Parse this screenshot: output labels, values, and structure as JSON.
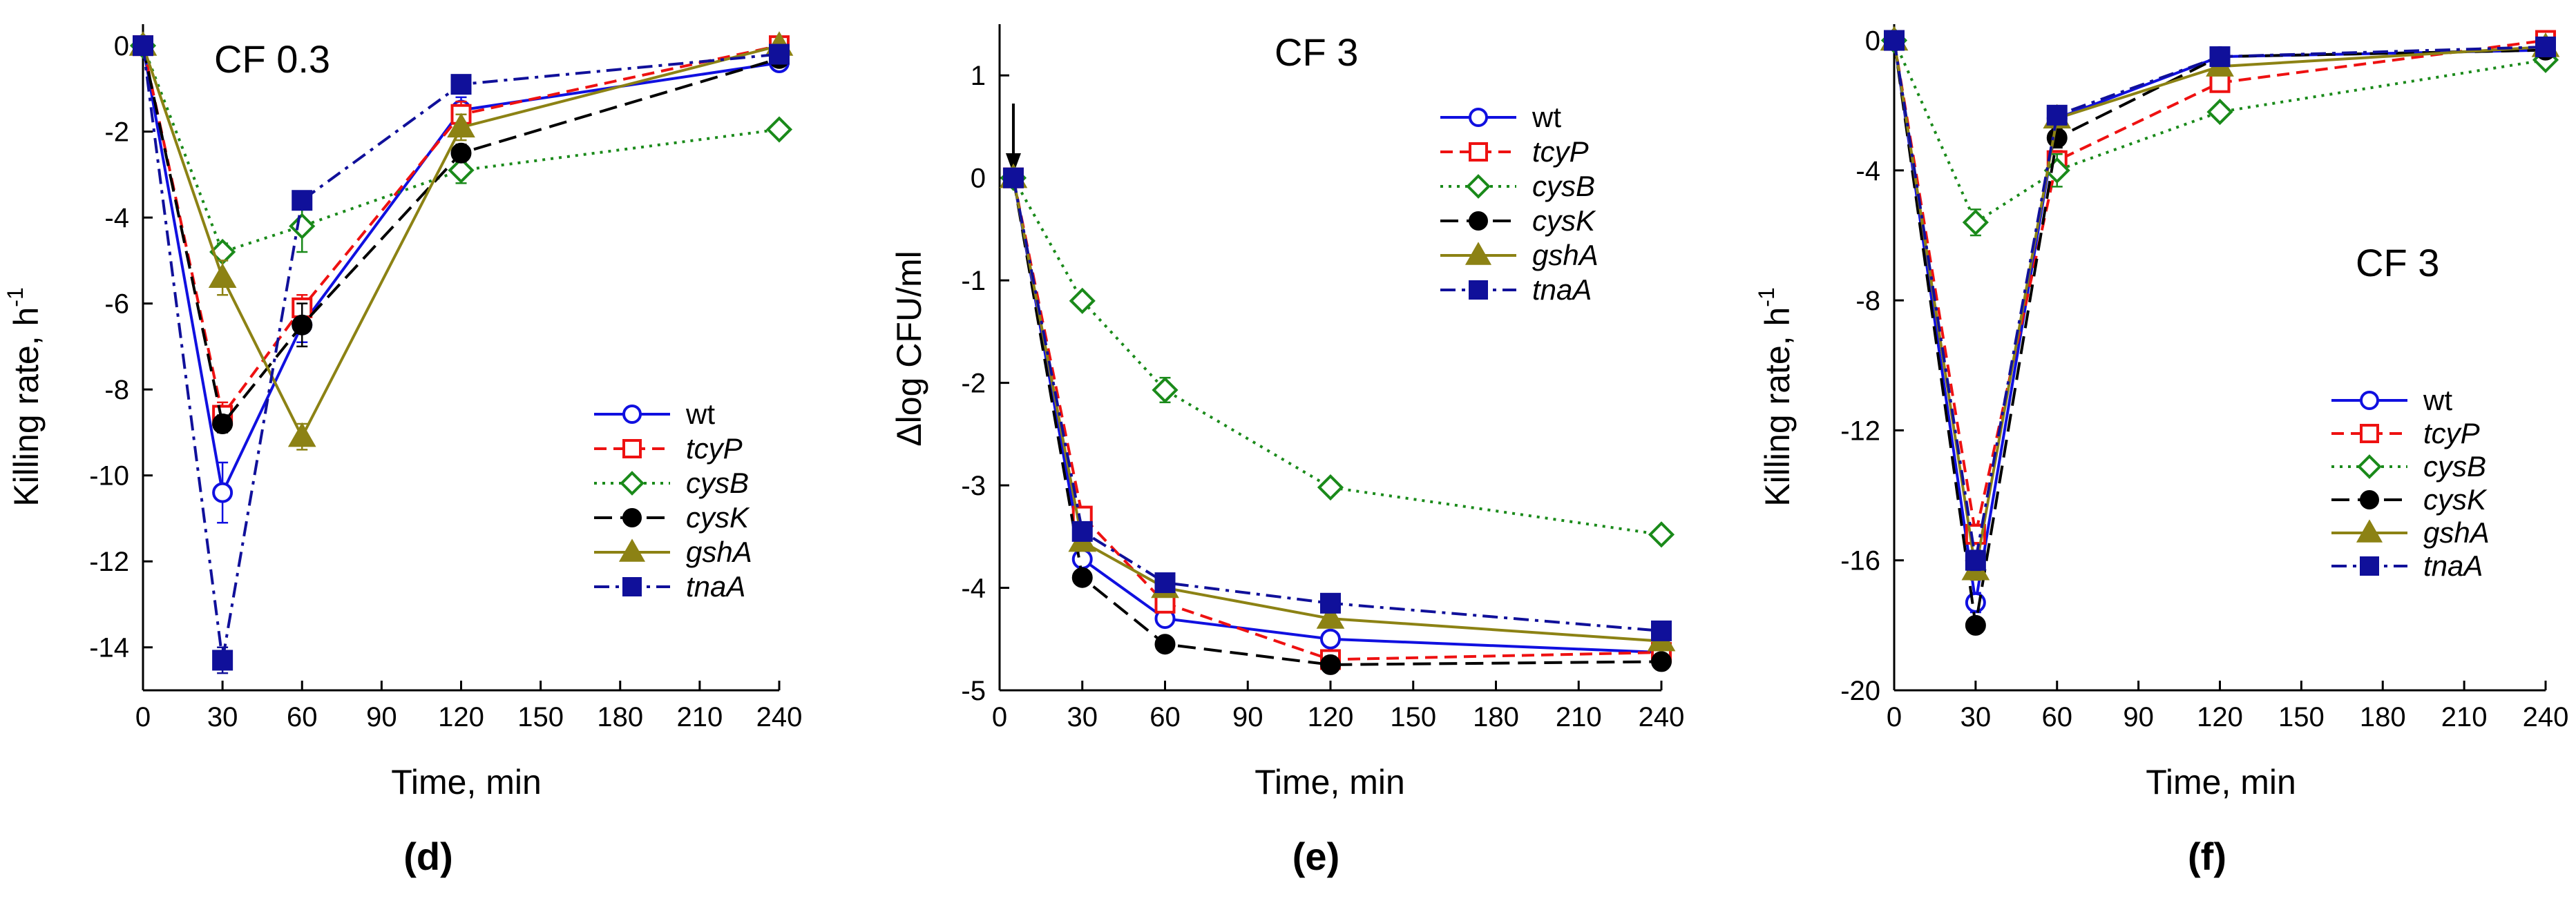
{
  "figure": {
    "panel_labels": [
      {
        "open": "(",
        "letter": "d",
        "close": ")"
      },
      {
        "open": "(",
        "letter": "e",
        "close": ")"
      },
      {
        "open": "(",
        "letter": "f",
        "close": ")"
      }
    ]
  },
  "styles": {
    "wt": {
      "color": "#1010e0",
      "dash": "solid",
      "marker": "circle",
      "filled": false
    },
    "tcyP": {
      "color": "#ee1111",
      "dash": "dashed",
      "marker": "square",
      "filled": false
    },
    "cysB": {
      "color": "#1a8a1a",
      "dash": "dotted",
      "marker": "diamond",
      "filled": false
    },
    "cysK": {
      "color": "#000000",
      "dash": "longdash",
      "marker": "circle",
      "filled": true
    },
    "gshA": {
      "color": "#8c8214",
      "dash": "solid",
      "marker": "triangle",
      "filled": true
    },
    "tnaA": {
      "color": "#10109a",
      "dash": "dashdot",
      "marker": "square",
      "filled": true
    }
  },
  "chart_data": [
    {
      "type": "line",
      "title": "CF 0.3",
      "xlabel": "Time, min",
      "ylabel_main": "Killing rate, h",
      "ylabel_sup": "-1",
      "xlim": [
        0,
        240
      ],
      "ylim": [
        -15,
        0.5
      ],
      "xticks": [
        0,
        30,
        60,
        90,
        120,
        150,
        180,
        210,
        240
      ],
      "xtick_labels": [
        "0",
        "30",
        "60",
        "90",
        "120",
        "150",
        "180",
        "210",
        "240"
      ],
      "yticks": [
        0,
        -2,
        -4,
        -6,
        -8,
        -10,
        -12,
        -14
      ],
      "ytick_labels": [
        "0",
        "-2",
        "-4",
        "-6",
        "-8",
        "-10",
        "-12",
        "-14"
      ],
      "legend": "lower-right",
      "arrow_at_x": null,
      "x": [
        0,
        30,
        60,
        120,
        240
      ],
      "series": [
        {
          "name": "wt",
          "values": [
            0,
            -10.4,
            -6.5,
            -1.5,
            -0.4
          ],
          "err": [
            0,
            0.7,
            0.4,
            0.3,
            0.1
          ]
        },
        {
          "name": "tcyP",
          "values": [
            0,
            -8.6,
            -6.1,
            -1.6,
            0
          ],
          "err": [
            0,
            0.3,
            0.3,
            0.3,
            0.1
          ]
        },
        {
          "name": "cysB",
          "values": [
            0,
            -4.8,
            -4.2,
            -2.9,
            -1.95
          ],
          "err": [
            0,
            0.2,
            0.6,
            0.3,
            0.1
          ]
        },
        {
          "name": "cysK",
          "values": [
            0,
            -8.8,
            -6.5,
            -2.5,
            -0.3
          ],
          "err": [
            0,
            0.2,
            0.5,
            0.2,
            0.1
          ]
        },
        {
          "name": "gshA",
          "values": [
            0,
            -5.4,
            -9.1,
            -1.9,
            0
          ],
          "err": [
            0,
            0.4,
            0.3,
            0.3,
            0.1
          ]
        },
        {
          "name": "tnaA",
          "values": [
            0,
            -14.3,
            -3.6,
            -0.9,
            -0.2
          ],
          "err": [
            0,
            0.3,
            0.1,
            0.1,
            0.1
          ]
        }
      ]
    },
    {
      "type": "line",
      "title": "CF 3",
      "xlabel": "Time, min",
      "ylabel_main": "Δlog CFU/ml",
      "ylabel_sup": "",
      "xlim": [
        0,
        240
      ],
      "ylim": [
        -5,
        1.5
      ],
      "xticks": [
        0,
        30,
        60,
        90,
        120,
        150,
        180,
        210,
        240
      ],
      "xtick_labels": [
        "0",
        "30",
        "60",
        "90",
        "120",
        "150",
        "180",
        "210",
        "240"
      ],
      "yticks": [
        1,
        0,
        -1,
        -2,
        -3,
        -4,
        -5
      ],
      "ytick_labels": [
        "1",
        "0",
        "-1",
        "-2",
        "-3",
        "-4",
        "-5"
      ],
      "legend": "top-right",
      "arrow_at_x": 5,
      "x": [
        5,
        30,
        60,
        120,
        240
      ],
      "series": [
        {
          "name": "wt",
          "values": [
            0,
            -3.72,
            -4.3,
            -4.5,
            -4.63
          ],
          "err": [
            0,
            0.05,
            0.05,
            0.05,
            0.05
          ]
        },
        {
          "name": "tcyP",
          "values": [
            0,
            -3.3,
            -4.15,
            -4.7,
            -4.63
          ],
          "err": [
            0,
            0.05,
            0.05,
            0.05,
            0.05
          ]
        },
        {
          "name": "cysB",
          "values": [
            0,
            -1.2,
            -2.07,
            -3.02,
            -3.48
          ],
          "err": [
            0,
            0.06,
            0.12,
            0.05,
            0.05
          ]
        },
        {
          "name": "cysK",
          "values": [
            0,
            -3.9,
            -4.55,
            -4.75,
            -4.72
          ],
          "err": [
            0,
            0.05,
            0.07,
            0.08,
            0.05
          ]
        },
        {
          "name": "gshA",
          "values": [
            0,
            -3.55,
            -4.0,
            -4.3,
            -4.52
          ],
          "err": [
            0,
            0.05,
            0.05,
            0.05,
            0.05
          ]
        },
        {
          "name": "tnaA",
          "values": [
            0,
            -3.45,
            -3.95,
            -4.15,
            -4.42
          ],
          "err": [
            0,
            0.05,
            0.05,
            0.05,
            0.05
          ]
        }
      ]
    },
    {
      "type": "line",
      "title": "CF 3",
      "xlabel": "Time, min",
      "ylabel_main": "Killing rate, h",
      "ylabel_sup": "-1",
      "xlim": [
        0,
        240
      ],
      "ylim": [
        -20,
        0.5
      ],
      "xticks": [
        0,
        30,
        60,
        90,
        120,
        150,
        180,
        210,
        240
      ],
      "xtick_labels": [
        "0",
        "30",
        "60",
        "90",
        "120",
        "150",
        "180",
        "210",
        "240"
      ],
      "yticks": [
        0,
        -4,
        -8,
        -12,
        -16,
        -20
      ],
      "ytick_labels": [
        "0",
        "-4",
        "-8",
        "-12",
        "-16",
        "-20"
      ],
      "legend": "lower-right",
      "arrow_at_x": null,
      "x": [
        0,
        30,
        60,
        120,
        240
      ],
      "series": [
        {
          "name": "wt",
          "values": [
            0,
            -17.3,
            -2.4,
            -0.5,
            -0.3
          ],
          "err": [
            0,
            0.3,
            0.2,
            0.2,
            0.1
          ]
        },
        {
          "name": "tcyP",
          "values": [
            0,
            -15.2,
            -3.7,
            -1.3,
            0
          ],
          "err": [
            0,
            0.3,
            0.3,
            0.2,
            0.1
          ]
        },
        {
          "name": "cysB",
          "values": [
            0,
            -5.6,
            -4.0,
            -2.2,
            -0.6
          ],
          "err": [
            0,
            0.4,
            0.5,
            0.2,
            0.1
          ]
        },
        {
          "name": "cysK",
          "values": [
            0,
            -18.0,
            -3.0,
            -0.5,
            -0.3
          ],
          "err": [
            0,
            0.2,
            0.3,
            0.1,
            0.1
          ]
        },
        {
          "name": "gshA",
          "values": [
            0,
            -16.3,
            -2.4,
            -0.8,
            -0.2
          ],
          "err": [
            0,
            0.3,
            0.2,
            0.1,
            0.1
          ]
        },
        {
          "name": "tnaA",
          "values": [
            0,
            -16.0,
            -2.3,
            -0.5,
            -0.2
          ],
          "err": [
            0,
            0.3,
            0.2,
            0.1,
            0.1
          ]
        }
      ]
    }
  ]
}
